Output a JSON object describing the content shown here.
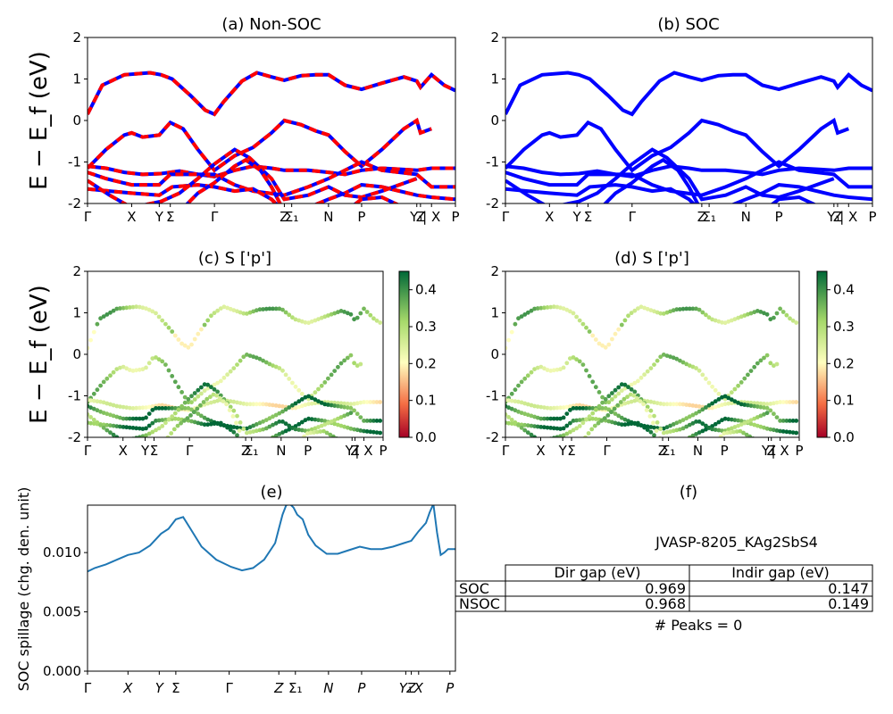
{
  "colors": {
    "red": "#ff0000",
    "blue": "#0000ff",
    "spill": "#1f77b4"
  },
  "band_ticks": [
    "Γ",
    "X",
    "Y",
    "Σ",
    "Γ",
    "Z",
    "Σ₁",
    "N",
    "P",
    "Y₁",
    "Z",
    "| X",
    "P"
  ],
  "chart_data": [
    {
      "panel": "a",
      "type": "line",
      "title": "(a) Non-SOC",
      "ylabel": "E − E_f (eV)",
      "ylim": [
        -2,
        2
      ],
      "yticks": [
        "-2",
        "-1",
        "0",
        "1",
        "2"
      ],
      "series_colors": [
        "red dashed",
        "blue"
      ]
    },
    {
      "panel": "b",
      "type": "line",
      "title": "(b) SOC",
      "ylim": [
        -2,
        2
      ],
      "yticks": [
        "-2",
        "-1",
        "0",
        "1",
        "2"
      ],
      "series_colors": [
        "blue"
      ]
    },
    {
      "panel": "c",
      "type": "scatter",
      "title": "(c)  S ['p']",
      "ylabel": "E − E_f (eV)",
      "ylim": [
        -2,
        2
      ],
      "yticks": [
        "-2",
        "-1",
        "0",
        "1",
        "2"
      ],
      "colorbar": {
        "ticks": [
          "0.0",
          "0.1",
          "0.2",
          "0.3",
          "0.4"
        ],
        "range": [
          0.0,
          0.45
        ],
        "cmap": "RdYlGn"
      }
    },
    {
      "panel": "d",
      "type": "scatter",
      "title": "(d) S ['p']",
      "ylim": [
        -2,
        2
      ],
      "yticks": [
        "-2",
        "-1",
        "0",
        "1",
        "2"
      ],
      "colorbar": {
        "ticks": [
          "0.0",
          "0.1",
          "0.2",
          "0.3",
          "0.4"
        ],
        "range": [
          0.0,
          0.45
        ],
        "cmap": "RdYlGn"
      }
    },
    {
      "panel": "e",
      "type": "line",
      "title": "(e)",
      "ylabel": "SOC spillage (chg. den. unit)",
      "ylim": [
        0,
        0.014
      ],
      "yticks": [
        "0.000",
        "0.005",
        "0.010"
      ],
      "xticks": [
        "Γ",
        "X",
        "Y",
        "Σ",
        "Γ",
        "Z",
        "Σ₁",
        "N",
        "P",
        "Y₁",
        "Z",
        "X",
        "P"
      ],
      "x": [
        0,
        0.02,
        0.05,
        0.08,
        0.11,
        0.14,
        0.17,
        0.2,
        0.22,
        0.24,
        0.26,
        0.28,
        0.31,
        0.35,
        0.39,
        0.42,
        0.45,
        0.48,
        0.51,
        0.52,
        0.53,
        0.54,
        0.55,
        0.56,
        0.57,
        0.585,
        0.6,
        0.62,
        0.65,
        0.68,
        0.71,
        0.74,
        0.77,
        0.8,
        0.83,
        0.86,
        0.88,
        0.9,
        0.92,
        0.93,
        0.94,
        0.95,
        0.96,
        0.97,
        0.98,
        0.99,
        1.0
      ],
      "y": [
        0.0084,
        0.0087,
        0.009,
        0.0094,
        0.0098,
        0.01,
        0.0106,
        0.0116,
        0.012,
        0.0128,
        0.013,
        0.012,
        0.0105,
        0.0094,
        0.0088,
        0.0085,
        0.0087,
        0.0094,
        0.0108,
        0.012,
        0.0132,
        0.014,
        0.0141,
        0.0138,
        0.0132,
        0.0128,
        0.0115,
        0.0106,
        0.0099,
        0.0099,
        0.0102,
        0.0105,
        0.0103,
        0.0103,
        0.0105,
        0.0108,
        0.011,
        0.0118,
        0.0125,
        0.0134,
        0.0141,
        0.0117,
        0.0098,
        0.01,
        0.0103,
        0.0103,
        0.0103
      ]
    }
  ],
  "panel_f": {
    "title": "(f)",
    "material": "JVASP-8205_KAg2SbS4",
    "headers": [
      "Dir gap (eV)",
      "Indir gap (eV)"
    ],
    "rows": [
      {
        "label": "SOC",
        "dir": "0.969",
        "indir": "0.147"
      },
      {
        "label": "NSOC",
        "dir": "0.968",
        "indir": "0.149"
      }
    ],
    "peaks": "# Peaks = 0"
  }
}
